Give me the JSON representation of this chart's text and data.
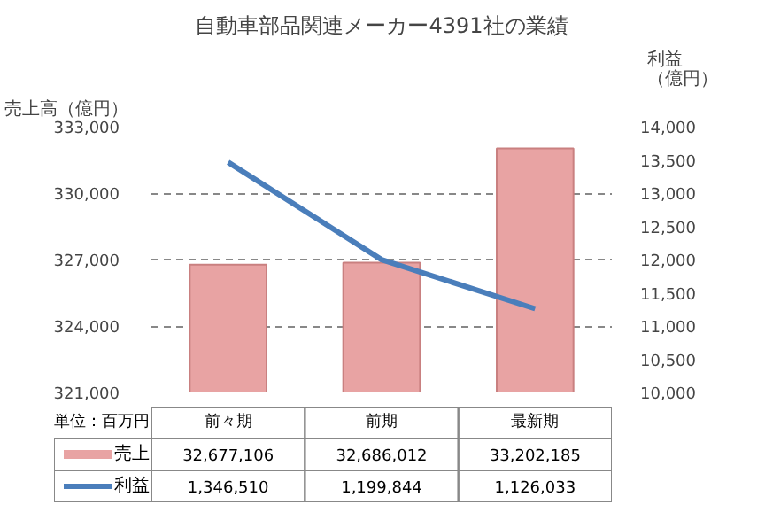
{
  "chart_data": {
    "type": "bar",
    "title": "自動車部品関連メーカー4391社の業績",
    "ylabel": "売上高（億円）",
    "y2label": "利益（億円）",
    "annotations": [
      "単位：百万円",
      "32,677,106",
      "32,686,012",
      "33,202,185",
      "1,346,510",
      "1,199,844",
      "1,126,033"
    ],
    "categories": [
      "前々期",
      "前期",
      "最新期"
    ],
    "series": [
      {
        "name": "売上",
        "color": "#e8a3a3",
        "values": [
          326771,
          326860,
          332022
        ]
      },
      {
        "name": "利益",
        "type": "line",
        "axis": "y2",
        "color": "#4a7ebb",
        "values": [
          13465,
          11998,
          11260
        ]
      }
    ],
    "ylim": [
      321000,
      333000
    ],
    "yticks": [
      {
        "value": 321000,
        "label": "321,000"
      },
      {
        "value": 324000,
        "label": "324,000"
      },
      {
        "value": 327000,
        "label": "327,000"
      },
      {
        "value": 330000,
        "label": "330,000"
      },
      {
        "value": 333000,
        "label": "333,000"
      }
    ],
    "y2lim": [
      10000,
      14000
    ],
    "y2ticks": [
      {
        "value": 10000,
        "label": "10,000"
      },
      {
        "value": 10500,
        "label": "10,500"
      },
      {
        "value": 11000,
        "label": "11,000"
      },
      {
        "value": 11500,
        "label": "11,500"
      },
      {
        "value": 12000,
        "label": "12,000"
      },
      {
        "value": 12500,
        "label": "12,500"
      },
      {
        "value": 13000,
        "label": "13,000"
      },
      {
        "value": 13500,
        "label": "13,500"
      },
      {
        "value": 14000,
        "label": "14,000"
      }
    ],
    "grid": "y",
    "legend": "bottom",
    "marker": "none",
    "line_style": "solid"
  }
}
